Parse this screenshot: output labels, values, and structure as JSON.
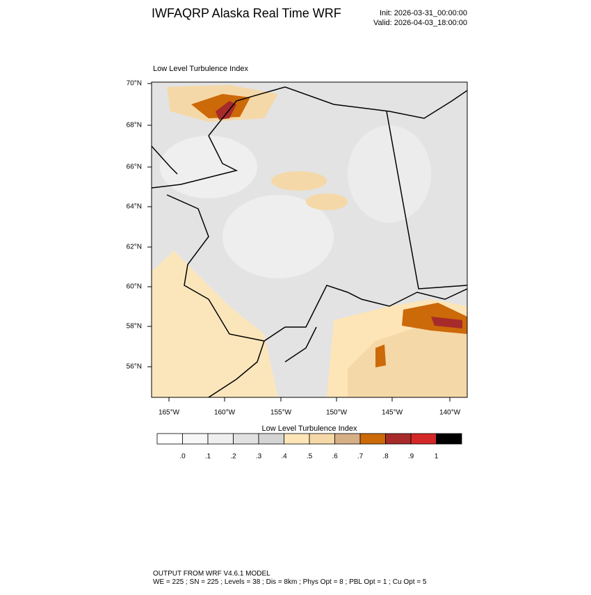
{
  "header": {
    "title": "IWFAQRP Alaska Real Time WRF",
    "init": "Init: 2026-03-31_00:00:00",
    "valid": "Valid: 2026-04-03_18:00:00"
  },
  "map": {
    "title": "Low Level Turbulence Index",
    "lat_labels": [
      "70°N",
      "68°N",
      "66°N",
      "64°N",
      "62°N",
      "60°N",
      "58°N",
      "56°N"
    ],
    "lon_labels": [
      "165°W",
      "160°W",
      "155°W",
      "150°W",
      "145°W",
      "140°W"
    ]
  },
  "colorbar": {
    "title": "Low Level Turbulence Index",
    "colors": [
      "#ffffff",
      "#f7f7f7",
      "#efefef",
      "#e1e1e1",
      "#d4d4d4",
      "#fde5b7",
      "#f5d8a7",
      "#d5af86",
      "#cc6908",
      "#a62b2a",
      "#d42727",
      "#000000"
    ],
    "labels": [
      ".0",
      ".1",
      ".2",
      ".3",
      ".4",
      ".5",
      ".6",
      ".7",
      ".8",
      ".9",
      "1"
    ]
  },
  "footer": {
    "line1": "OUTPUT FROM WRF V4.6.1 MODEL",
    "line2": "WE = 225 ; SN = 225 ; Levels = 38 ; Dis = 8km ; Phys Opt = 8 ; PBL Opt = 1 ; Cu Opt = 5"
  }
}
